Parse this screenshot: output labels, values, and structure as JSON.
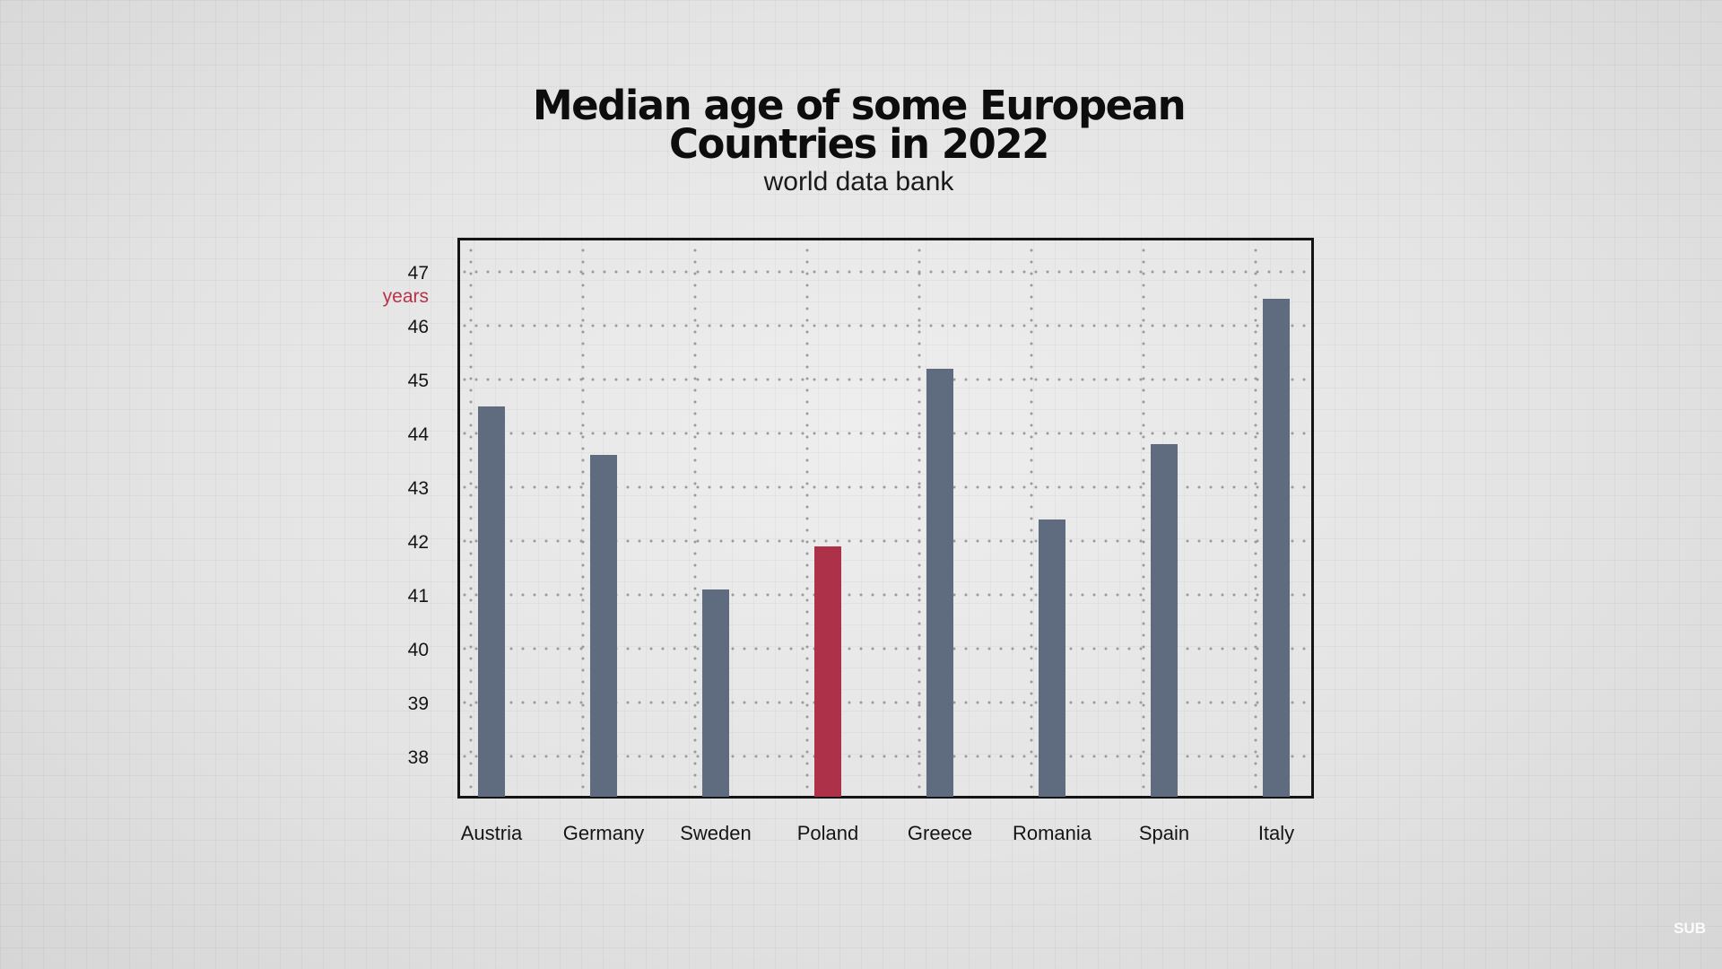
{
  "chart_data": {
    "type": "bar",
    "title": "Median age of some European Countries in 2022",
    "subtitle": "world data bank",
    "xlabel": "",
    "ylabel": "years",
    "categories": [
      "Austria",
      "Germany",
      "Sweden",
      "Poland",
      "Greece",
      "Romania",
      "Spain",
      "Italy"
    ],
    "values": [
      44.5,
      43.6,
      41.1,
      41.9,
      45.2,
      42.4,
      43.8,
      46.5
    ],
    "yticks": [
      38,
      39,
      40,
      41,
      42,
      43,
      44,
      45,
      46,
      47
    ],
    "ylim": [
      37.25,
      47.6
    ],
    "grid": true,
    "bar_color": "#5f6b7f",
    "highlight_category": "Poland",
    "highlight_color": "#ad3149"
  },
  "corner_label": "SUB"
}
